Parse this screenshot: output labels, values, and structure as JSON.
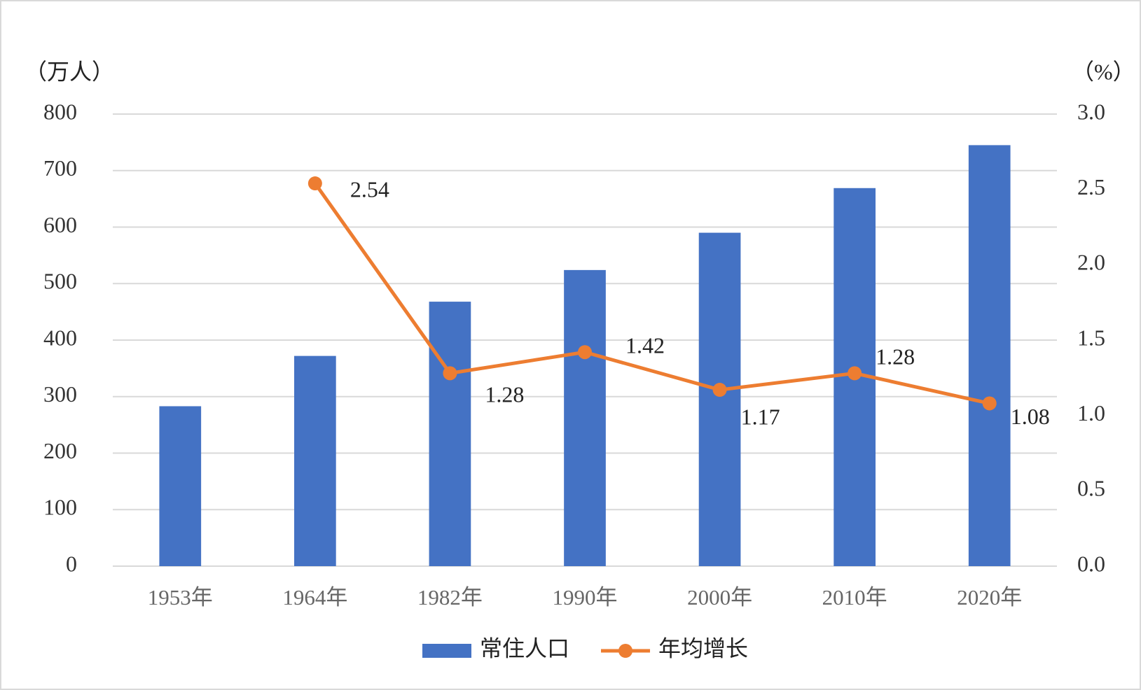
{
  "chart_data": {
    "type": "bar-line",
    "y_label": "（万人）",
    "y2_label": "（%）",
    "categories": [
      "1953年",
      "1964年",
      "1982年",
      "1990年",
      "2000年",
      "2010年",
      "2020年"
    ],
    "series": [
      {
        "name": "常住人口",
        "type": "bar",
        "color": "#4472c4",
        "values": [
          283,
          372,
          468,
          524,
          590,
          669,
          745
        ]
      },
      {
        "name": "年均增长",
        "type": "line",
        "axis": "y2",
        "color": "#ed7d31",
        "values": [
          null,
          2.54,
          1.28,
          1.42,
          1.17,
          1.28,
          1.08
        ]
      }
    ],
    "ylim": [
      0,
      800
    ],
    "yticks": [
      0,
      100,
      200,
      300,
      400,
      500,
      600,
      700,
      800
    ],
    "y2lim": [
      0,
      3
    ],
    "y2ticks": [
      {
        "value": 0,
        "label": "0.0"
      },
      {
        "value": 0.5,
        "label": "0.5"
      },
      {
        "value": 1,
        "label": "1.0"
      },
      {
        "value": 1.5,
        "label": "1.5"
      },
      {
        "value": 2,
        "label": "2.0"
      },
      {
        "value": 2.5,
        "label": "2.5"
      },
      {
        "value": 3,
        "label": "3.0"
      }
    ],
    "grid": true,
    "legend": "bottom"
  }
}
